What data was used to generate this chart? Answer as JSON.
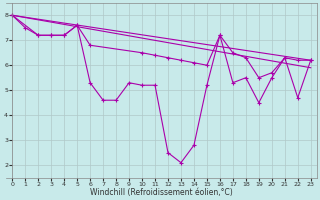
{
  "background_color": "#c8eaea",
  "grid_color": "#b0c8c8",
  "line_color": "#aa00aa",
  "xlabel": "Windchill (Refroidissement éolien,°C)",
  "xlim": [
    -0.5,
    23.5
  ],
  "ylim": [
    1.5,
    8.5
  ],
  "xticks": [
    0,
    1,
    2,
    3,
    4,
    5,
    6,
    7,
    8,
    9,
    10,
    11,
    12,
    13,
    14,
    15,
    16,
    17,
    18,
    19,
    20,
    21,
    22,
    23
  ],
  "yticks": [
    2,
    3,
    4,
    5,
    6,
    7,
    8
  ],
  "line1_x": [
    0,
    1,
    2,
    3,
    4,
    5,
    6,
    7,
    8,
    9,
    10,
    11,
    12,
    13,
    14,
    15,
    16,
    17,
    18,
    19,
    20,
    21,
    22,
    23
  ],
  "line1_y": [
    8.0,
    7.5,
    7.2,
    7.2,
    7.2,
    7.6,
    5.3,
    4.6,
    4.6,
    5.3,
    5.2,
    5.2,
    2.5,
    2.1,
    2.8,
    5.2,
    7.2,
    5.3,
    5.5,
    4.5,
    5.5,
    6.3,
    4.7,
    6.2
  ],
  "line2_x": [
    0,
    2,
    3,
    4,
    5,
    6,
    10,
    11,
    12,
    13,
    14,
    15,
    16,
    17,
    18,
    19,
    20,
    21,
    22,
    23
  ],
  "line2_y": [
    8.0,
    7.2,
    7.2,
    7.2,
    7.6,
    6.8,
    6.5,
    6.4,
    6.3,
    6.2,
    6.1,
    6.0,
    7.2,
    6.5,
    6.3,
    5.5,
    5.7,
    6.3,
    6.2,
    6.2
  ],
  "line3_x": [
    0,
    23
  ],
  "line3_y": [
    8.0,
    5.9
  ],
  "line4_x": [
    0,
    23
  ],
  "line4_y": [
    8.0,
    6.2
  ]
}
